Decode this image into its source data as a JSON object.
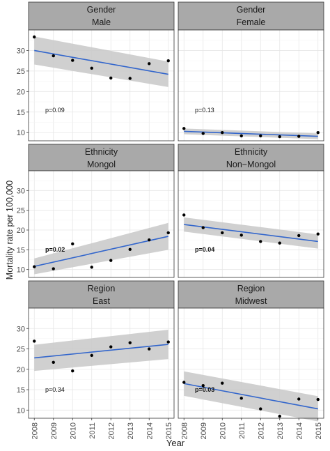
{
  "figure": {
    "ylabel": "Mortality rate per 100,000",
    "xlabel": "Year",
    "x_ticks": [
      "2008",
      "2009",
      "2010",
      "2011",
      "2012",
      "2013",
      "2014",
      "2015"
    ],
    "y_ticks": [
      "10",
      "15",
      "20",
      "25",
      "30"
    ],
    "style": {
      "strip_bg": "#a9a9a9",
      "panel_bg": "#ffffff",
      "grid_color": "#e6e6e6",
      "ribbon_color": "#c8c8c8",
      "line_color": "#3366cc",
      "point_color": "#000000",
      "border_color": "#333333"
    }
  },
  "chart_data": [
    {
      "type": "scatter",
      "facet": [
        "Gender",
        "Male"
      ],
      "x": [
        2008,
        2009,
        2010,
        2011,
        2012,
        2013,
        2014,
        2015
      ],
      "y": [
        33.3,
        28.7,
        27.6,
        25.7,
        23.3,
        23.2,
        26.8,
        27.5
      ],
      "fit": {
        "start": 30.0,
        "end": 24.2
      },
      "band": {
        "lower_start": 26.6,
        "upper_start": 33.4,
        "lower_end": 21.1,
        "upper_end": 27.3
      },
      "pvalue": "p=0.09",
      "p_bold": false,
      "xlim": [
        2008,
        2015
      ],
      "ylim": [
        8,
        35
      ]
    },
    {
      "type": "scatter",
      "facet": [
        "Gender",
        "Female"
      ],
      "x": [
        2008,
        2009,
        2010,
        2011,
        2012,
        2013,
        2014,
        2015
      ],
      "y": [
        11.0,
        9.8,
        10.0,
        9.2,
        9.2,
        9.0,
        9.1,
        10.0
      ],
      "fit": {
        "start": 10.3,
        "end": 9.1
      },
      "band": {
        "lower_start": 9.6,
        "upper_start": 11.0,
        "lower_end": 8.4,
        "upper_end": 9.8
      },
      "pvalue": "p=0.13",
      "p_bold": false,
      "xlim": [
        2008,
        2015
      ],
      "ylim": [
        8,
        35
      ]
    },
    {
      "type": "scatter",
      "facet": [
        "Ethnicity",
        "Mongol"
      ],
      "x": [
        2008,
        2009,
        2010,
        2011,
        2012,
        2013,
        2014,
        2015
      ],
      "y": [
        10.7,
        10.2,
        16.5,
        10.6,
        12.3,
        15.1,
        17.5,
        19.3
      ],
      "fit": {
        "start": 10.8,
        "end": 18.4
      },
      "band": {
        "lower_start": 8.8,
        "upper_start": 12.8,
        "lower_end": 15.0,
        "upper_end": 21.8
      },
      "pvalue": "p=0.02",
      "p_bold": true,
      "xlim": [
        2008,
        2015
      ],
      "ylim": [
        8,
        35
      ]
    },
    {
      "type": "scatter",
      "facet": [
        "Ethnicity",
        "Non−Mongol"
      ],
      "x": [
        2008,
        2009,
        2010,
        2011,
        2012,
        2013,
        2014,
        2015
      ],
      "y": [
        23.8,
        20.6,
        19.3,
        18.7,
        17.1,
        16.7,
        18.6,
        19.0
      ],
      "fit": {
        "start": 21.4,
        "end": 17.1
      },
      "band": {
        "lower_start": 19.6,
        "upper_start": 23.2,
        "lower_end": 15.3,
        "upper_end": 18.9
      },
      "pvalue": "p=0.04",
      "p_bold": true,
      "xlim": [
        2008,
        2015
      ],
      "ylim": [
        8,
        35
      ]
    },
    {
      "type": "scatter",
      "facet": [
        "Region",
        "East"
      ],
      "x": [
        2008,
        2009,
        2010,
        2011,
        2012,
        2013,
        2014,
        2015
      ],
      "y": [
        26.9,
        21.7,
        19.6,
        23.4,
        25.5,
        26.5,
        25.0,
        26.7
      ],
      "fit": {
        "start": 22.8,
        "end": 26.1
      },
      "band": {
        "lower_start": 19.6,
        "upper_start": 26.0,
        "lower_end": 22.5,
        "upper_end": 29.7
      },
      "pvalue": "p=0.34",
      "p_bold": false,
      "xlim": [
        2008,
        2015
      ],
      "ylim": [
        8,
        35
      ]
    },
    {
      "type": "scatter",
      "facet": [
        "Region",
        "Midwest"
      ],
      "x": [
        2008,
        2009,
        2010,
        2011,
        2012,
        2013,
        2014,
        2015
      ],
      "y": [
        16.8,
        16.0,
        16.6,
        12.9,
        10.3,
        8.5,
        12.7,
        12.6
      ],
      "fit": {
        "start": 16.5,
        "end": 10.3
      },
      "band": {
        "lower_start": 13.5,
        "upper_start": 19.5,
        "lower_end": 7.2,
        "upper_end": 13.4
      },
      "pvalue": "p=0.03",
      "p_bold": true,
      "xlim": [
        2008,
        2015
      ],
      "ylim": [
        8,
        35
      ]
    }
  ]
}
